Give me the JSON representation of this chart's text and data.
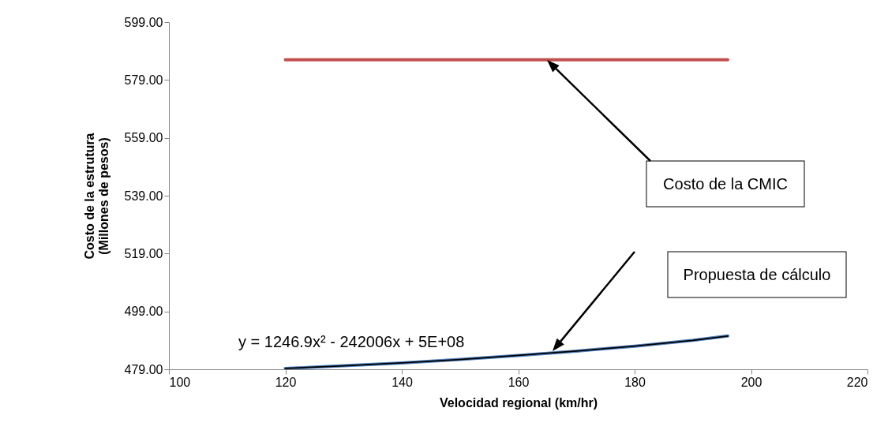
{
  "chart_data": {
    "type": "line",
    "xlabel": "Velocidad regional (km/hr)",
    "ylabel": "Costo de la estrutura\n(Millones de pesos)",
    "xlim": [
      100,
      220
    ],
    "xticks": [
      100,
      120,
      140,
      160,
      180,
      200,
      220
    ],
    "ylim": [
      479,
      599
    ],
    "yticks": [
      {
        "value": 479,
        "label": "479.00"
      },
      {
        "value": 499,
        "label": "499.00"
      },
      {
        "value": 519,
        "label": "519.00"
      },
      {
        "value": 539,
        "label": "539.00"
      },
      {
        "value": 559,
        "label": "559.00"
      },
      {
        "value": 579,
        "label": "579.00"
      },
      {
        "value": 599,
        "label": "599.00"
      }
    ],
    "grid": false,
    "series": [
      {
        "color": "#c0504d",
        "x": [
          120,
          196
        ],
        "values": [
          586,
          586
        ]
      },
      {
        "color": "#4f81bd",
        "x": [
          120,
          130,
          140,
          150,
          160,
          170,
          180,
          190,
          196
        ],
        "values": [
          479.3,
          480.2,
          481.2,
          482.4,
          483.8,
          485.3,
          487.0,
          489.0,
          490.5
        ]
      },
      {
        "color": "#000000",
        "x": [
          120,
          130,
          140,
          150,
          160,
          170,
          180,
          190,
          196
        ],
        "values": [
          479.3,
          480.2,
          481.2,
          482.4,
          483.8,
          485.3,
          487.0,
          489.0,
          490.5
        ]
      }
    ],
    "annotations": [
      "Costo de la CMIC",
      "Propuesta de cálculo",
      "y = 1246.9x² - 242006x + 5E+08"
    ]
  }
}
